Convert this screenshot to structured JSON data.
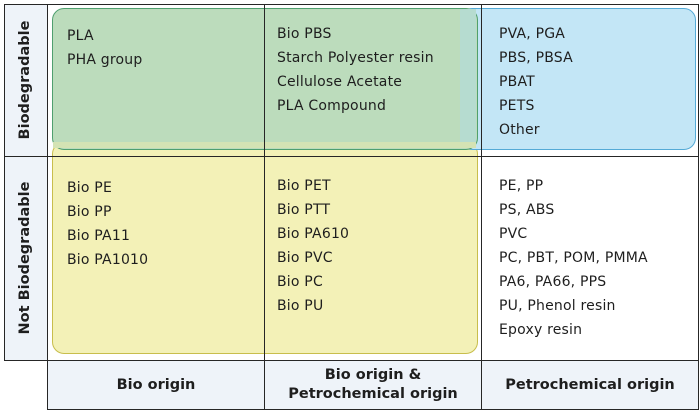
{
  "row_labels": {
    "biodegradable": "Biodegradable",
    "not_biodegradable": "Not Biodegradable"
  },
  "column_labels": {
    "bio_origin": "Bio origin",
    "mixed_line1": "Bio origin &",
    "mixed_line2": "Petrochemical origin",
    "petrochemical": "Petrochemical origin"
  },
  "cells": {
    "bio_biodegradable": [
      "PLA",
      "PHA group"
    ],
    "mixed_biodegradable": [
      "Bio PBS",
      "Starch Polyester resin",
      "Cellulose Acetate",
      "PLA Compound"
    ],
    "petro_biodegradable": [
      "PVA, PGA",
      "PBS, PBSA",
      "PBAT",
      "PETS",
      "Other"
    ],
    "bio_not_biodegradable": [
      "Bio PE",
      "Bio PP",
      "Bio PA11",
      "Bio PA1010"
    ],
    "mixed_not_biodegradable": [
      "Bio PET",
      "Bio PTT",
      "Bio PA610",
      "Bio PVC",
      "Bio PC",
      "Bio PU"
    ],
    "petro_not_biodegradable": [
      "PE, PP",
      "PS, ABS",
      "PVC",
      "PC, PBT, POM, PMMA",
      "PA6, PA66, PPS",
      "PU, Phenol resin",
      "Epoxy resin"
    ]
  },
  "colors": {
    "green_region": "#bcdcbc",
    "blue_region": "#c3e6f6",
    "yellow_region": "#f3f1b7",
    "header_background": "#eef3f9"
  }
}
